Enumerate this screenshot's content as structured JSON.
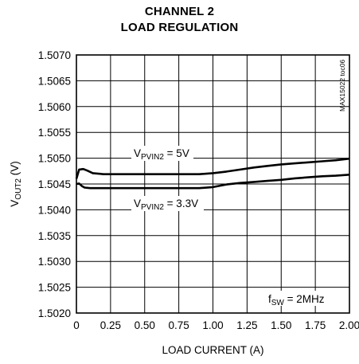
{
  "chart_data": {
    "type": "line",
    "title": "CHANNEL 2",
    "subtitle": "LOAD REGULATION",
    "xlabel": "LOAD CURRENT (A)",
    "ylabel": {
      "main": "V",
      "sub": "OUT2",
      "rest": " (V)"
    },
    "xlim": [
      0,
      2.0
    ],
    "ylim": [
      1.502,
      1.507
    ],
    "x_ticks": [
      "0",
      "0.25",
      "0.50",
      "0.75",
      "1.00",
      "1.25",
      "1.50",
      "1.75",
      "2.00"
    ],
    "y_ticks": [
      "1.5020",
      "1.5025",
      "1.5030",
      "1.5035",
      "1.5040",
      "1.5045",
      "1.5050",
      "1.5055",
      "1.5060",
      "1.5065",
      "1.5070"
    ],
    "grid": true,
    "series": [
      {
        "name": "VPVIN2 = 5V",
        "label": {
          "main": "V",
          "sub": "PVIN2",
          "rest": " = 5V"
        },
        "x": [
          0,
          0.02,
          0.05,
          0.08,
          0.12,
          0.2,
          0.4,
          0.6,
          0.8,
          0.9,
          1.0,
          1.1,
          1.2,
          1.3,
          1.4,
          1.5,
          1.6,
          1.7,
          1.8,
          1.9,
          2.0
        ],
        "y": [
          1.5046,
          1.50478,
          1.50479,
          1.50476,
          1.50471,
          1.50469,
          1.50469,
          1.50469,
          1.50469,
          1.50469,
          1.50471,
          1.50474,
          1.50478,
          1.50482,
          1.50485,
          1.50488,
          1.5049,
          1.50492,
          1.50494,
          1.50496,
          1.50499
        ]
      },
      {
        "name": "VPVIN2 = 3.3V",
        "label": {
          "main": "V",
          "sub": "PVIN2",
          "rest": " = 3.3V"
        },
        "x": [
          0,
          0.02,
          0.04,
          0.06,
          0.1,
          0.2,
          0.4,
          0.6,
          0.8,
          0.9,
          1.0,
          1.1,
          1.2,
          1.3,
          1.4,
          1.5,
          1.6,
          1.7,
          1.8,
          1.9,
          2.0
        ],
        "y": [
          1.5045,
          1.50451,
          1.50446,
          1.50443,
          1.50442,
          1.50442,
          1.50442,
          1.50442,
          1.50442,
          1.50442,
          1.50444,
          1.50449,
          1.50452,
          1.50454,
          1.50456,
          1.50458,
          1.50461,
          1.50463,
          1.50465,
          1.50466,
          1.50468
        ]
      }
    ],
    "annotation": {
      "main": "f",
      "sub": "SW",
      "rest": " = 2MHz"
    },
    "side_code": "MAX15022 toc06"
  }
}
